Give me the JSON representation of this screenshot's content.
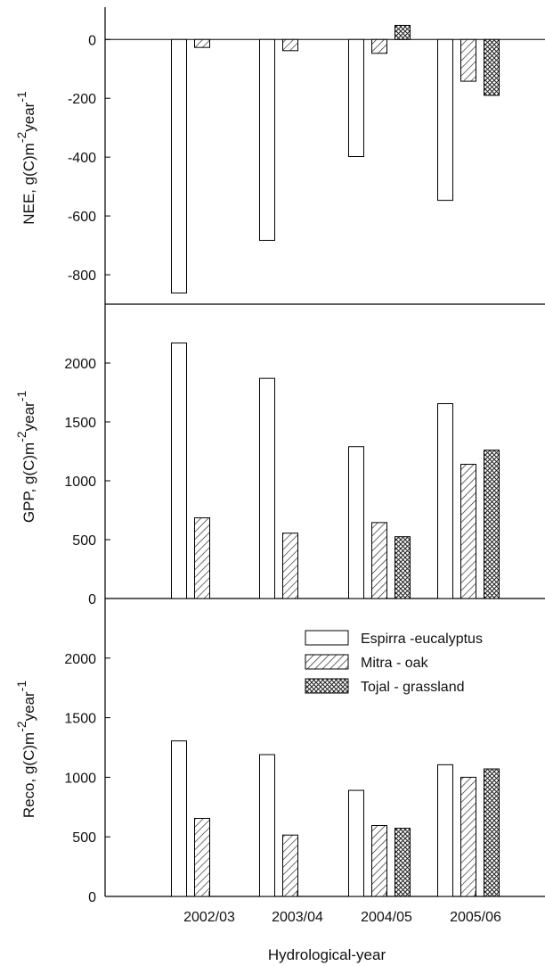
{
  "chart_data": [
    {
      "type": "bar",
      "panel": "NEE",
      "ylabel": {
        "main": "NEE, g(C)m",
        "sup1": "-2",
        "mid": "year",
        "sup2": "-1"
      },
      "ylim": [
        -900,
        110
      ],
      "yticks": [
        0,
        -200,
        -400,
        -600,
        -800
      ],
      "categories": [
        "2002/03",
        "2003/04",
        "2004/05",
        "2005/06"
      ],
      "series": [
        {
          "name": "Espirra -eucalyptus",
          "values": [
            -862,
            -683,
            -398,
            -547
          ]
        },
        {
          "name": "Mitra - oak",
          "values": [
            -27,
            -38,
            -47,
            -142
          ]
        },
        {
          "name": "Tojal - grassland",
          "values": [
            null,
            null,
            48,
            -190
          ]
        }
      ]
    },
    {
      "type": "bar",
      "panel": "GPP",
      "ylabel": {
        "main": "GPP, g(C)m",
        "sup1": "-2",
        "mid": "year",
        "sup2": "-1"
      },
      "ylim": [
        0,
        2500
      ],
      "yticks": [
        0,
        500,
        1000,
        1500,
        2000
      ],
      "categories": [
        "2002/03",
        "2003/04",
        "2004/05",
        "2005/06"
      ],
      "series": [
        {
          "name": "Espirra -eucalyptus",
          "values": [
            2170,
            1870,
            1290,
            1655
          ]
        },
        {
          "name": "Mitra - oak",
          "values": [
            685,
            555,
            645,
            1140
          ]
        },
        {
          "name": "Tojal - grassland",
          "values": [
            null,
            null,
            525,
            1260
          ]
        }
      ]
    },
    {
      "type": "bar",
      "panel": "Reco",
      "ylabel": {
        "main": "Reco, g(C)m",
        "sup1": "-2",
        "mid": "year",
        "sup2": "-1"
      },
      "ylim": [
        0,
        2500
      ],
      "yticks": [
        0,
        500,
        1000,
        1500,
        2000
      ],
      "categories": [
        "2002/03",
        "2003/04",
        "2004/05",
        "2005/06"
      ],
      "xlabel": "Hydrological-year",
      "legend": "top-right",
      "series": [
        {
          "name": "Espirra -eucalyptus",
          "values": [
            1305,
            1190,
            890,
            1105
          ]
        },
        {
          "name": "Mitra - oak",
          "values": [
            655,
            515,
            595,
            1000
          ]
        },
        {
          "name": "Tojal - grassland",
          "values": [
            null,
            null,
            572,
            1070
          ]
        }
      ]
    }
  ]
}
